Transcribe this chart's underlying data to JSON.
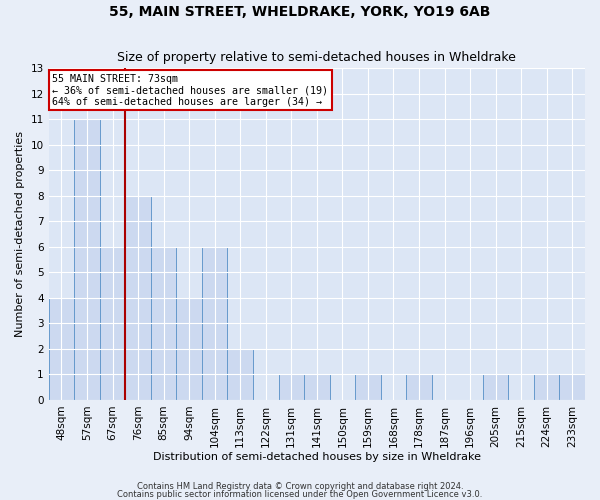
{
  "title": "55, MAIN STREET, WHELDRAKE, YORK, YO19 6AB",
  "subtitle": "Size of property relative to semi-detached houses in Wheldrake",
  "xlabel": "Distribution of semi-detached houses by size in Wheldrake",
  "ylabel": "Number of semi-detached properties",
  "bin_labels": [
    "48sqm",
    "57sqm",
    "67sqm",
    "76sqm",
    "85sqm",
    "94sqm",
    "104sqm",
    "113sqm",
    "122sqm",
    "131sqm",
    "141sqm",
    "150sqm",
    "159sqm",
    "168sqm",
    "178sqm",
    "187sqm",
    "196sqm",
    "205sqm",
    "215sqm",
    "224sqm",
    "233sqm"
  ],
  "bar_heights": [
    4,
    11,
    6,
    8,
    6,
    4,
    6,
    2,
    0,
    1,
    1,
    0,
    1,
    0,
    1,
    0,
    0,
    1,
    0,
    1,
    1
  ],
  "bar_color": "#ccd9f0",
  "bar_edge_color": "#6699cc",
  "vline_x_idx": 2.5,
  "vline_color": "#aa0000",
  "annotation_title": "55 MAIN STREET: 73sqm",
  "annotation_line1": "← 36% of semi-detached houses are smaller (19)",
  "annotation_line2": "64% of semi-detached houses are larger (34) →",
  "annotation_box_color": "#cc0000",
  "ylim": [
    0,
    13
  ],
  "yticks": [
    0,
    1,
    2,
    3,
    4,
    5,
    6,
    7,
    8,
    9,
    10,
    11,
    12,
    13
  ],
  "footer1": "Contains HM Land Registry data © Crown copyright and database right 2024.",
  "footer2": "Contains public sector information licensed under the Open Government Licence v3.0.",
  "bg_color": "#e8eef8",
  "plot_bg_color": "#dce6f5",
  "grid_color": "#ffffff",
  "title_fontsize": 10,
  "subtitle_fontsize": 9,
  "ylabel_fontsize": 8,
  "xlabel_fontsize": 8,
  "tick_fontsize": 7.5,
  "footer_fontsize": 6
}
